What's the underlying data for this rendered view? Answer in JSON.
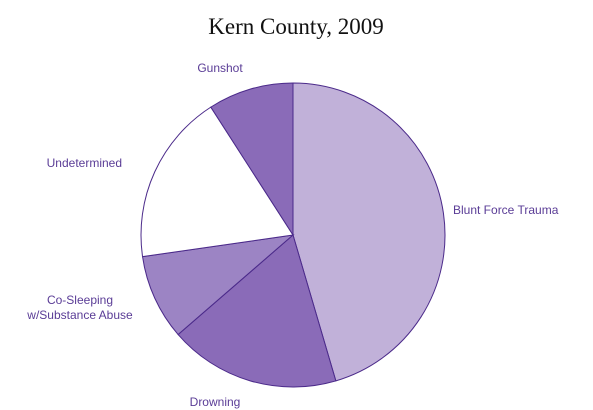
{
  "chart_data": {
    "type": "pie",
    "title": "Kern County, 2009",
    "categories": [
      "Blunt Force Trauma",
      "Drowning",
      "Co-Sleeping\nw/Substance Abuse",
      "Undetermined",
      "Gunshot"
    ],
    "values": [
      5,
      2,
      1,
      2,
      1
    ],
    "colors": [
      "#c1b1d9",
      "#8a6bb8",
      "#9c84c4",
      "#ffffff",
      "#8a6bb8"
    ]
  }
}
